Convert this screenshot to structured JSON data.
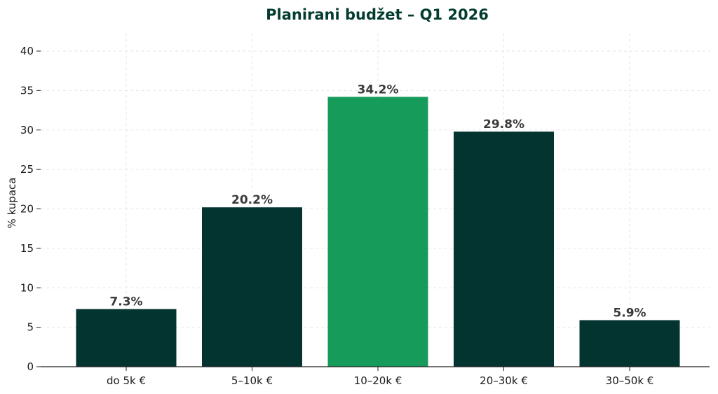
{
  "chart_data": {
    "type": "bar",
    "title": "Planirani budžet – Q1 2026",
    "xlabel": "",
    "ylabel": "% kupaca",
    "categories": [
      "do 5k €",
      "5–10k €",
      "10–20k €",
      "20–30k €",
      "30–50k €"
    ],
    "values": [
      7.3,
      20.2,
      34.2,
      29.8,
      5.9
    ],
    "data_labels": [
      "7.3%",
      "20.2%",
      "34.2%",
      "29.8%",
      "5.9%"
    ],
    "highlight_index": 2,
    "ylim": [
      0,
      40
    ],
    "yticks": [
      "0",
      "5",
      "10",
      "15",
      "20",
      "25",
      "30",
      "35",
      "40"
    ],
    "grid": true,
    "colors": {
      "bar": "#033430",
      "highlight": "#169b5a",
      "title": "#033b2f"
    }
  }
}
